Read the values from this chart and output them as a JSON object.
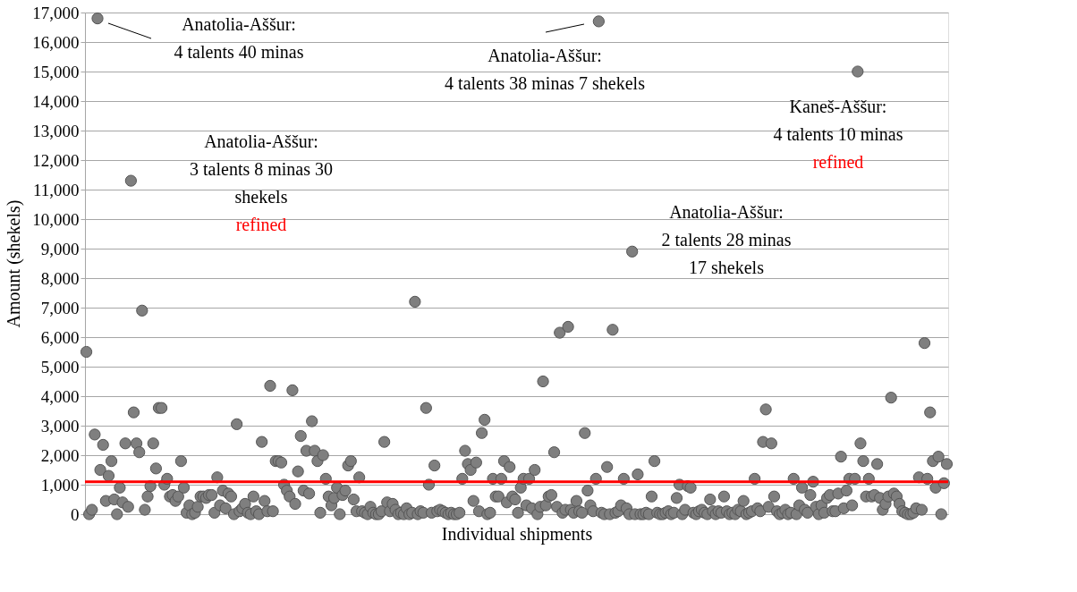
{
  "chart_data": {
    "type": "scatter",
    "xlabel": "Individual shipments",
    "ylabel": "Amount (shekels)",
    "ylim": [
      0,
      17000
    ],
    "yticks": [
      0,
      {
        "value": 1000,
        "label": "1,000"
      },
      {
        "value": 2000,
        "label": "2,000"
      },
      {
        "value": 3000,
        "label": "3,000"
      },
      {
        "value": 4000,
        "label": "4,000"
      },
      {
        "value": 5000,
        "label": "5,000"
      },
      {
        "value": 6000,
        "label": "6,000"
      },
      {
        "value": 7000,
        "label": "7,000"
      },
      {
        "value": 8000,
        "label": "8,000"
      },
      {
        "value": 9000,
        "label": "9,000"
      },
      {
        "value": 10000,
        "label": "10,000"
      },
      {
        "value": 11000,
        "label": "11,000"
      },
      {
        "value": 12000,
        "label": "12,000"
      },
      {
        "value": 13000,
        "label": "13,000"
      },
      {
        "value": 14000,
        "label": "14,000"
      },
      {
        "value": 15000,
        "label": "15,000"
      },
      {
        "value": 16000,
        "label": "16,000"
      },
      {
        "value": 17000,
        "label": "17,000"
      }
    ],
    "grid": "y",
    "marker": "circle",
    "ref_lines": [
      {
        "axis": "y",
        "value": 1100,
        "color": "#ff0000"
      }
    ],
    "annotations": [
      "Anatolia-Aššur:\n4 talents 40 minas",
      "Anatolia-Aššur:\n4 talents 38 minas 7 shekels",
      "Kaneš-Aššur:\n4 talents 10 minas",
      "refined",
      "Anatolia-Aššur:\n3 talents 8 minas 30\nshekels",
      "refined",
      "Anatolia-Aššur:\n2 talents 28 minas\n17 shekels"
    ],
    "series": [
      {
        "color": "#7f7f7f",
        "values": [
          5500,
          0,
          150,
          2700,
          16800,
          1500,
          2350,
          450,
          1300,
          1800,
          500,
          0,
          900,
          400,
          2400,
          250,
          11300,
          3450,
          2400,
          2100,
          6900,
          150,
          600,
          950,
          2400,
          1550,
          3600,
          3600,
          1000,
          1200,
          600,
          650,
          450,
          600,
          1800,
          900,
          50,
          300,
          0,
          50,
          250,
          600,
          600,
          550,
          650,
          650,
          50,
          1250,
          300,
          800,
          200,
          700,
          600,
          0,
          3050,
          100,
          200,
          350,
          50,
          0,
          600,
          100,
          0,
          2450,
          450,
          100,
          4350,
          100,
          1800,
          1800,
          1750,
          1000,
          800,
          600,
          4200,
          350,
          1450,
          2650,
          800,
          2150,
          700,
          3150,
          2150,
          1800,
          50,
          2000,
          1200,
          600,
          300,
          550,
          900,
          0,
          650,
          800,
          1650,
          1800,
          500,
          100,
          1250,
          100,
          50,
          0,
          250,
          50,
          0,
          0,
          100,
          2450,
          400,
          100,
          350,
          150,
          0,
          50,
          0,
          200,
          0,
          50,
          7200,
          0,
          100,
          50,
          3600,
          1000,
          50,
          1650,
          100,
          150,
          100,
          50,
          0,
          50,
          0,
          0,
          50,
          1200,
          2150,
          1700,
          1500,
          450,
          1750,
          100,
          2750,
          3200,
          0,
          50,
          1200,
          600,
          600,
          1200,
          1800,
          400,
          1600,
          600,
          500,
          50,
          900,
          1200,
          300,
          1200,
          200,
          1500,
          0,
          250,
          4500,
          300,
          600,
          650,
          2100,
          250,
          6150,
          50,
          150,
          6350,
          150,
          50,
          450,
          100,
          50,
          2750,
          800,
          300,
          100,
          1200,
          16700,
          50,
          0,
          1600,
          0,
          6250,
          50,
          100,
          300,
          1200,
          200,
          0,
          8900,
          0,
          1350,
          0,
          0,
          50,
          0,
          600,
          1800,
          50,
          0,
          0,
          50,
          100,
          0,
          50,
          550,
          1000,
          0,
          150,
          950,
          900,
          50,
          0,
          100,
          150,
          50,
          0,
          500,
          100,
          0,
          100,
          50,
          600,
          100,
          0,
          50,
          0,
          150,
          100,
          450,
          0,
          50,
          100,
          1200,
          200,
          100,
          2450,
          3550,
          250,
          2400,
          600,
          100,
          0,
          50,
          150,
          0,
          50,
          1200,
          0,
          300,
          900,
          150,
          50,
          650,
          1100,
          250,
          0,
          300,
          50,
          550,
          650,
          100,
          100,
          700,
          1950,
          200,
          800,
          1200,
          300,
          1200,
          15000,
          2400,
          1800,
          600,
          1200,
          600,
          650,
          1700,
          550,
          150,
          350,
          600,
          3950,
          700,
          600,
          350,
          100,
          50,
          0,
          0,
          50,
          200,
          1250,
          150,
          5800,
          1200,
          3450,
          1800,
          900,
          1950,
          0,
          1050,
          1700
        ]
      }
    ]
  }
}
